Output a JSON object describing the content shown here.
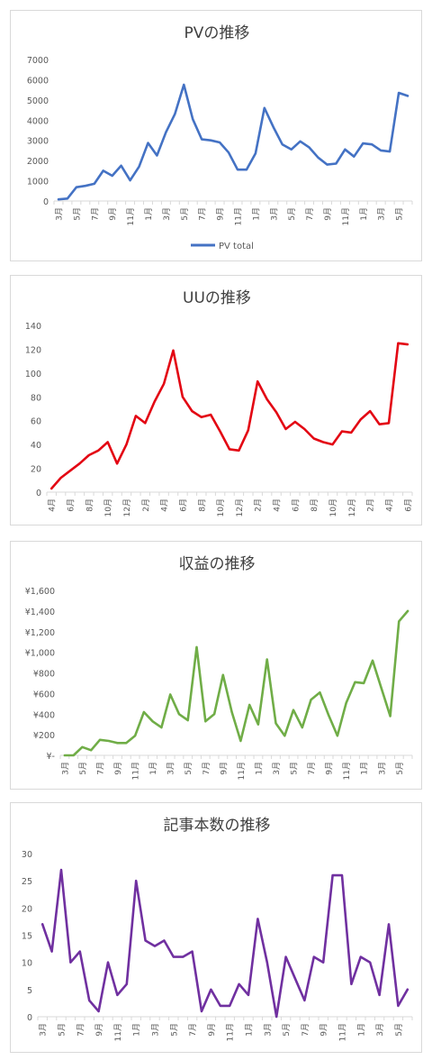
{
  "chart_data": [
    {
      "type": "line",
      "title": "PVの推移",
      "ylim": [
        0,
        7000
      ],
      "yticks": [
        "0",
        "1000",
        "2000",
        "3000",
        "4000",
        "5000",
        "6000",
        "7000"
      ],
      "color": "#4472C4",
      "legend_position": "bottom",
      "xticks": [
        "3月",
        "5月",
        "7月",
        "9月",
        "11月",
        "1月",
        "3月",
        "5月",
        "7月",
        "9月",
        "11月",
        "1月",
        "3月",
        "5月",
        "7月",
        "9月",
        "11月",
        "1月",
        "3月",
        "5月"
      ],
      "series": [
        {
          "name": "PV total",
          "values": [
            80,
            120,
            680,
            750,
            850,
            1500,
            1250,
            1750,
            1020,
            1700,
            2870,
            2250,
            3400,
            4300,
            5750,
            4050,
            3050,
            3000,
            2900,
            2400,
            1550,
            1550,
            2350,
            4600,
            3650,
            2800,
            2550,
            2950,
            2650,
            2150,
            1800,
            1850,
            2550,
            2200,
            2850,
            2800,
            2500,
            2450,
            5350,
            5200
          ]
        }
      ]
    },
    {
      "type": "line",
      "title": "UUの推移",
      "ylim": [
        0,
        140
      ],
      "yticks": [
        "0",
        "20",
        "40",
        "60",
        "80",
        "100",
        "120",
        "140"
      ],
      "color": "#E30613",
      "xticks": [
        "4月",
        "6月",
        "8月",
        "10月",
        "12月",
        "2月",
        "4月",
        "6月",
        "8月",
        "10月",
        "12月",
        "2月",
        "4月",
        "6月",
        "8月",
        "10月",
        "12月",
        "2月",
        "4月",
        "6月"
      ],
      "series": [
        {
          "values": [
            3,
            12,
            18,
            24,
            31,
            35,
            42,
            24,
            40,
            64,
            58,
            76,
            91,
            119,
            80,
            68,
            63,
            65,
            51,
            36,
            35,
            52,
            93,
            78,
            67,
            53,
            59,
            53,
            45,
            42,
            40,
            51,
            50,
            61,
            68,
            57,
            58,
            125,
            124
          ]
        }
      ]
    },
    {
      "type": "line",
      "title": "収益の推移",
      "ylim": [
        0,
        1600
      ],
      "yticks": [
        "¥-",
        "¥200",
        "¥400",
        "¥600",
        "¥800",
        "¥1,000",
        "¥1,200",
        "¥1,400",
        "¥1,600"
      ],
      "color": "#70AD47",
      "xticks": [
        "3月",
        "5月",
        "7月",
        "9月",
        "11月",
        "1月",
        "3月",
        "5月",
        "7月",
        "9月",
        "11月",
        "1月",
        "3月",
        "5月",
        "7月",
        "9月",
        "11月",
        "1月",
        "3月",
        "5月"
      ],
      "series": [
        {
          "values": [
            0,
            0,
            80,
            50,
            150,
            140,
            120,
            120,
            190,
            420,
            330,
            270,
            590,
            400,
            340,
            1050,
            330,
            400,
            780,
            420,
            140,
            490,
            300,
            930,
            310,
            190,
            440,
            270,
            540,
            610,
            390,
            190,
            510,
            710,
            700,
            920,
            650,
            380,
            1300,
            1400
          ]
        }
      ]
    },
    {
      "type": "line",
      "title": "記事本数の推移",
      "ylim": [
        0,
        30
      ],
      "yticks": [
        "0",
        "5",
        "10",
        "15",
        "20",
        "25",
        "30"
      ],
      "color": "#7030A0",
      "xticks": [
        "3月",
        "5月",
        "7月",
        "9月",
        "11月",
        "1月",
        "3月",
        "5月",
        "7月",
        "9月",
        "11月",
        "1月",
        "3月",
        "5月",
        "7月",
        "9月",
        "11月",
        "1月",
        "3月",
        "5月"
      ],
      "series": [
        {
          "values": [
            17,
            12,
            27,
            10,
            12,
            3,
            1,
            10,
            4,
            6,
            25,
            14,
            13,
            14,
            11,
            11,
            12,
            1,
            5,
            2,
            2,
            6,
            4,
            18,
            10,
            0,
            11,
            7,
            3,
            11,
            10,
            26,
            26,
            6,
            11,
            10,
            4,
            17,
            2,
            5
          ]
        }
      ]
    }
  ]
}
